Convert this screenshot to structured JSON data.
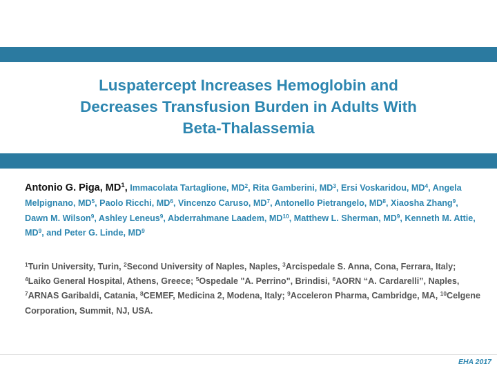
{
  "slide": {
    "title_lines": [
      "Luspatercept Increases Hemoglobin and",
      "Decreases Transfusion Burden in Adults With",
      "Beta-Thalassemia"
    ],
    "presenting_author": {
      "name": "Antonio G. Piga, MD",
      "sup": "1"
    },
    "authors": [
      {
        "name": "Immacolata Tartaglione, MD",
        "sup": "2",
        "sep": ", "
      },
      {
        "name": "Rita Gamberini, MD",
        "sup": "3",
        "sep": ", "
      },
      {
        "name": "Ersi Voskaridou, MD",
        "sup": "4",
        "sep": ", "
      },
      {
        "name": "Angela Melpignano, MD",
        "sup": "5",
        "sep": ", "
      },
      {
        "name": "Paolo Ricchi, MD",
        "sup": "6",
        "sep": ", "
      },
      {
        "name": "Vincenzo Caruso, MD",
        "sup": "7",
        "sep": ", "
      },
      {
        "name": "Antonello Pietrangelo, MD",
        "sup": "8",
        "sep": ", "
      },
      {
        "name": "Xiaosha Zhang",
        "sup": "9",
        "sep": ", "
      },
      {
        "name": "Dawn M. Wilson",
        "sup": "9",
        "sep": ", "
      },
      {
        "name": "Ashley Leneus",
        "sup": "9",
        "sep": ", "
      },
      {
        "name": "Abderrahmane Laadem, MD",
        "sup": "10",
        "sep": ", "
      },
      {
        "name": "Matthew L. Sherman, MD",
        "sup": "9",
        "sep": ", "
      },
      {
        "name": "Kenneth M. Attie, MD",
        "sup": "9",
        "sep": ", and "
      },
      {
        "name": "Peter G. Linde, MD",
        "sup": "9",
        "sep": ""
      }
    ],
    "affiliations": [
      {
        "sup": "1",
        "text": "Turin University, Turin, ",
        "sep": ""
      },
      {
        "sup": "2",
        "text": "Second University of Naples, Naples, ",
        "sep": ""
      },
      {
        "sup": "3",
        "text": "Arcispedale S. Anna, Cona, Ferrara, Italy; ",
        "sep": ""
      },
      {
        "sup": "4",
        "text": "Laiko General Hospital, Athens, Greece",
        "sep": "; "
      },
      {
        "sup": "5",
        "text": "Ospedale \"A. Perrino\", Brindisi, ",
        "sep": ""
      },
      {
        "sup": "6",
        "text": "AORN “A. Cardarelli”, Naples, ",
        "sep": ""
      },
      {
        "sup": "7",
        "text": "ARNAS Garibaldi, Catania, ",
        "sep": ""
      },
      {
        "sup": "8",
        "text": "CEMEF, Medicina 2, Modena, Italy; ",
        "sep": ""
      },
      {
        "sup": "9",
        "text": "Acceleron Pharma, Cambridge, MA, ",
        "sep": ""
      },
      {
        "sup": "10",
        "text": "Celgene Corporation, Summit, NJ, USA.",
        "sep": ""
      }
    ],
    "footer": "EHA 2017",
    "colors": {
      "band": "#2b7aa0",
      "title": "#2d86b0",
      "affiliation": "#555555"
    }
  }
}
